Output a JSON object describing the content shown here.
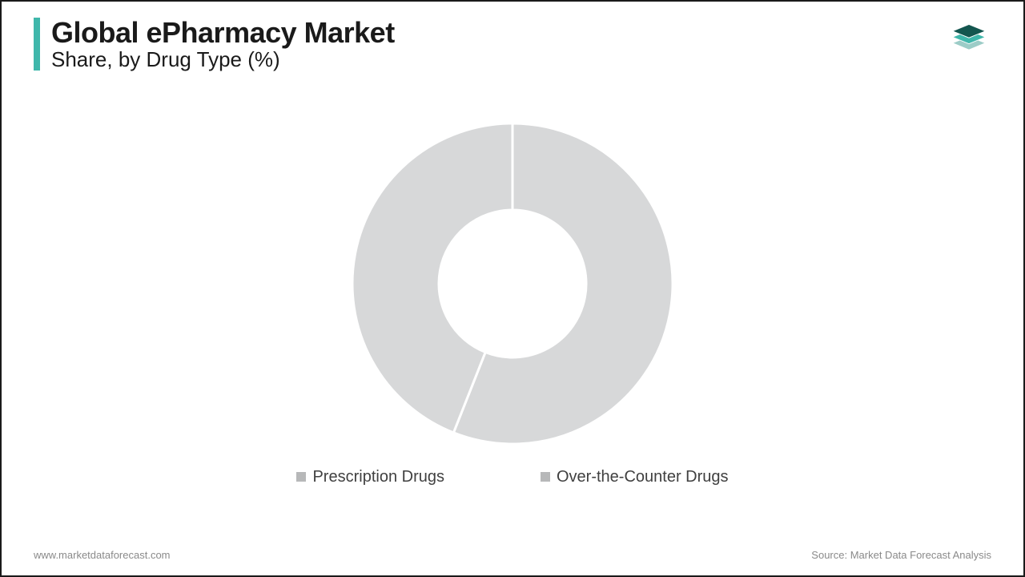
{
  "header": {
    "title": "Global ePharmacy Market",
    "subtitle": "Share, by Drug Type (%)",
    "accent_color": "#3fb7ab",
    "title_color": "#1a1a1a",
    "title_fontsize": 36,
    "subtitle_fontsize": 26
  },
  "chart": {
    "type": "donut",
    "background_color": "#ffffff",
    "slice_fill": "#d7d8d9",
    "gap_stroke": "#ffffff",
    "gap_stroke_width": 3,
    "outer_radius": 200,
    "inner_radius": 92,
    "series": [
      {
        "label": "Prescription Drugs",
        "value": 56,
        "color": "#d7d8d9",
        "swatch": "#b7b8b9"
      },
      {
        "label": "Over-the-Counter Drugs",
        "value": 44,
        "color": "#d7d8d9",
        "swatch": "#b7b8b9"
      }
    ]
  },
  "legend": {
    "fontsize": 20,
    "text_color": "#404040",
    "swatch_size": 12
  },
  "footer": {
    "left": "www.marketdataforecast.com",
    "right": "Source: Market Data Forecast Analysis",
    "color": "#8a8a8a",
    "fontsize": 13
  },
  "logo": {
    "layers": [
      "#13564f",
      "#3fb7ab",
      "#9cccc7"
    ]
  }
}
